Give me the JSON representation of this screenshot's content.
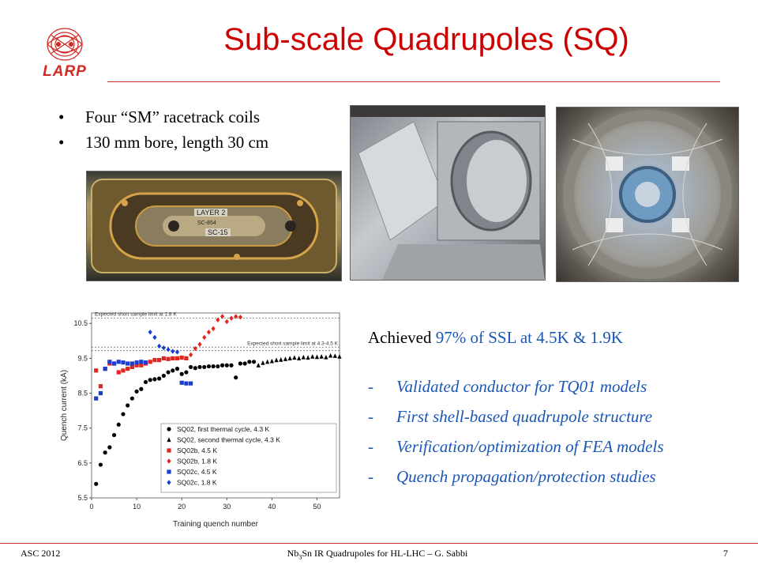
{
  "logo": {
    "text": "LARP"
  },
  "title": "Sub-scale Quadrupoles (SQ)",
  "bullets": [
    {
      "marker": "•",
      "text": "Four “SM” racetrack coils"
    },
    {
      "marker": "•",
      "text": "130 mm bore, length 30 cm"
    }
  ],
  "photos": {
    "coil": {
      "label_top": "LAYER 2",
      "label_mid": "SC-854",
      "label_bottom": "SC-15"
    }
  },
  "achieved": {
    "prefix": "Achieved",
    "highlight": "97% of SSL at 4.5K & 1.9K"
  },
  "items": [
    {
      "marker": "-",
      "text": "Validated conductor for TQ01 models"
    },
    {
      "marker": "-",
      "text": "First shell-based quadrupole structure"
    },
    {
      "marker": "-",
      "text": "Verification/optimization of FEA models"
    },
    {
      "marker": "-",
      "text": "Quench propagation/protection studies"
    }
  ],
  "footer": {
    "left": "ASC 2012",
    "center_prefix": "Nb",
    "center_sub": "3",
    "center_suffix": "Sn IR Quadrupoles for HL-LHC – G. Sabbi",
    "page": "7"
  },
  "chart_data": {
    "type": "scatter",
    "xlabel": "Training quench number",
    "ylabel": "Quench current (kA)",
    "xlim": [
      0,
      55
    ],
    "ylim": [
      5.5,
      10.8
    ],
    "x_ticks": [
      0,
      10,
      20,
      30,
      40,
      50
    ],
    "y_ticks": [
      5.5,
      6.5,
      7.5,
      8.5,
      9.5,
      10.5
    ],
    "y_tick_labels": [
      "5.5",
      "6.5",
      "7.5",
      "8.5",
      "9.5",
      "10.5"
    ],
    "grid": false,
    "legend_position": "bottom-right",
    "reference_lines": [
      {
        "label": "Expected short sample limit at 1.8 K",
        "y": 10.65
      },
      {
        "label": "Expected short sample limit at 4.3-4.5 K",
        "y": 9.82
      },
      {
        "label": "",
        "y": 9.72
      }
    ],
    "series": [
      {
        "name": "SQ02, first thermal cycle, 4.3 K",
        "marker": "circle",
        "color": "#000000",
        "points": [
          [
            1,
            5.9
          ],
          [
            2,
            6.45
          ],
          [
            3,
            6.8
          ],
          [
            4,
            6.95
          ],
          [
            5,
            7.3
          ],
          [
            6,
            7.6
          ],
          [
            7,
            7.9
          ],
          [
            8,
            8.15
          ],
          [
            9,
            8.35
          ],
          [
            10,
            8.55
          ],
          [
            11,
            8.62
          ],
          [
            12,
            8.82
          ],
          [
            13,
            8.88
          ],
          [
            14,
            8.9
          ],
          [
            15,
            8.92
          ],
          [
            16,
            9.0
          ],
          [
            17,
            9.1
          ],
          [
            18,
            9.15
          ],
          [
            19,
            9.2
          ],
          [
            20,
            9.05
          ],
          [
            21,
            9.1
          ],
          [
            22,
            9.25
          ],
          [
            23,
            9.22
          ],
          [
            24,
            9.25
          ],
          [
            25,
            9.25
          ],
          [
            26,
            9.27
          ],
          [
            27,
            9.27
          ],
          [
            28,
            9.27
          ],
          [
            29,
            9.3
          ],
          [
            30,
            9.3
          ],
          [
            31,
            9.3
          ],
          [
            32,
            8.95
          ],
          [
            33,
            9.35
          ],
          [
            34,
            9.35
          ],
          [
            35,
            9.4
          ],
          [
            36,
            9.4
          ]
        ]
      },
      {
        "name": "SQ02, second thermal cycle, 4.3 K",
        "marker": "triangle",
        "color": "#000000",
        "points": [
          [
            37,
            9.3
          ],
          [
            38,
            9.37
          ],
          [
            39,
            9.4
          ],
          [
            40,
            9.42
          ],
          [
            41,
            9.45
          ],
          [
            42,
            9.46
          ],
          [
            43,
            9.48
          ],
          [
            44,
            9.5
          ],
          [
            45,
            9.52
          ],
          [
            46,
            9.5
          ],
          [
            47,
            9.53
          ],
          [
            48,
            9.52
          ],
          [
            49,
            9.55
          ],
          [
            50,
            9.54
          ],
          [
            51,
            9.55
          ],
          [
            52,
            9.53
          ],
          [
            53,
            9.58
          ],
          [
            54,
            9.57
          ],
          [
            55,
            9.55
          ]
        ]
      },
      {
        "name": "SQ02b, 4.5 K",
        "marker": "square",
        "color": "#e0261e",
        "points": [
          [
            1,
            9.15
          ],
          [
            2,
            8.7
          ],
          [
            3,
            9.2
          ],
          [
            4,
            9.35
          ],
          [
            5,
            9.35
          ],
          [
            6,
            9.1
          ],
          [
            7,
            9.15
          ],
          [
            8,
            9.2
          ],
          [
            9,
            9.25
          ],
          [
            10,
            9.3
          ],
          [
            11,
            9.3
          ],
          [
            12,
            9.35
          ],
          [
            13,
            9.4
          ],
          [
            14,
            9.45
          ],
          [
            15,
            9.45
          ],
          [
            16,
            9.5
          ],
          [
            17,
            9.48
          ],
          [
            18,
            9.5
          ],
          [
            19,
            9.5
          ],
          [
            20,
            9.52
          ],
          [
            21,
            9.5
          ]
        ]
      },
      {
        "name": "SQ02b, 1.8 K",
        "marker": "diamond",
        "color": "#e0261e",
        "points": [
          [
            22,
            9.6
          ],
          [
            23,
            9.78
          ],
          [
            24,
            9.9
          ],
          [
            25,
            10.1
          ],
          [
            26,
            10.25
          ],
          [
            27,
            10.35
          ],
          [
            28,
            10.6
          ],
          [
            29,
            10.7
          ],
          [
            30,
            10.55
          ],
          [
            31,
            10.65
          ],
          [
            32,
            10.7
          ],
          [
            33,
            10.68
          ]
        ]
      },
      {
        "name": "SQ02c, 4.5 K",
        "marker": "square",
        "color": "#1a3fd0",
        "points": [
          [
            1,
            8.35
          ],
          [
            2,
            8.5
          ],
          [
            3,
            9.2
          ],
          [
            4,
            9.4
          ],
          [
            5,
            9.35
          ],
          [
            6,
            9.4
          ],
          [
            7,
            9.38
          ],
          [
            8,
            9.35
          ],
          [
            9,
            9.35
          ],
          [
            10,
            9.38
          ],
          [
            11,
            9.4
          ],
          [
            12,
            9.38
          ],
          [
            20,
            8.8
          ],
          [
            21,
            8.78
          ],
          [
            22,
            8.78
          ]
        ]
      },
      {
        "name": "SQ02c, 1.8 K",
        "marker": "diamond",
        "color": "#1a3fd0",
        "points": [
          [
            13,
            10.25
          ],
          [
            14,
            10.1
          ],
          [
            15,
            9.85
          ],
          [
            16,
            9.8
          ],
          [
            17,
            9.75
          ],
          [
            18,
            9.7
          ],
          [
            19,
            9.68
          ]
        ]
      }
    ]
  }
}
